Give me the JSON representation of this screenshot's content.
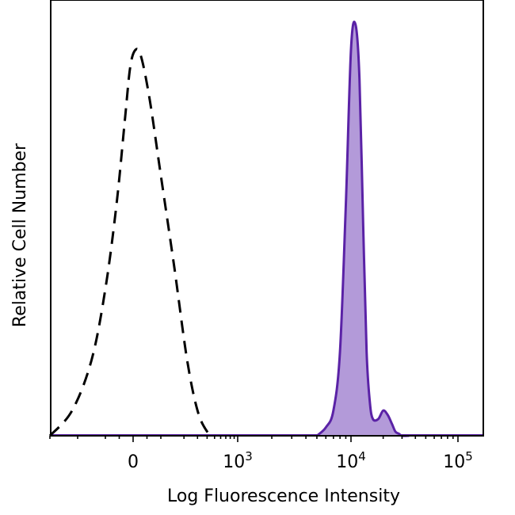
{
  "chart_data": {
    "type": "area",
    "title": "",
    "xlabel": "Log Fluorescence Intensity",
    "ylabel": "Relative Cell Number",
    "x_scale": "biexponential",
    "x_ticks": [
      {
        "base": "0",
        "exp": "",
        "value": 0
      },
      {
        "base": "10",
        "exp": "3",
        "value": 1000
      },
      {
        "base": "10",
        "exp": "4",
        "value": 10000
      },
      {
        "base": "10",
        "exp": "5",
        "value": 100000
      }
    ],
    "ylim": [
      0,
      100
    ],
    "grid": false,
    "legend": "none",
    "colors": {
      "sample_line": "#5a22a6",
      "sample_fill": "#b39ad9",
      "control_line": "#000000"
    },
    "series": [
      {
        "style": "dashed",
        "color": "#000000",
        "x": [
          -300,
          -220,
          -150,
          -100,
          -60,
          -30,
          -10,
          10,
          30,
          60,
          100,
          150,
          220,
          300,
          400,
          500
        ],
        "y": [
          0,
          6,
          18,
          35,
          55,
          75,
          88,
          92,
          90,
          80,
          62,
          40,
          18,
          6,
          1,
          0
        ]
      },
      {
        "style": "filled",
        "color": "#5a22a6",
        "x": [
          5000,
          6000,
          7000,
          8000,
          9000,
          10000,
          11000,
          12000,
          13000,
          14000,
          15000,
          16000,
          18000,
          20000,
          22000,
          24000,
          26000,
          28000,
          30000,
          35000
        ],
        "y": [
          0,
          2,
          6,
          20,
          55,
          92,
          98,
          85,
          50,
          20,
          8,
          4,
          4,
          6,
          5,
          3,
          1,
          0.5,
          0,
          0
        ]
      }
    ]
  }
}
